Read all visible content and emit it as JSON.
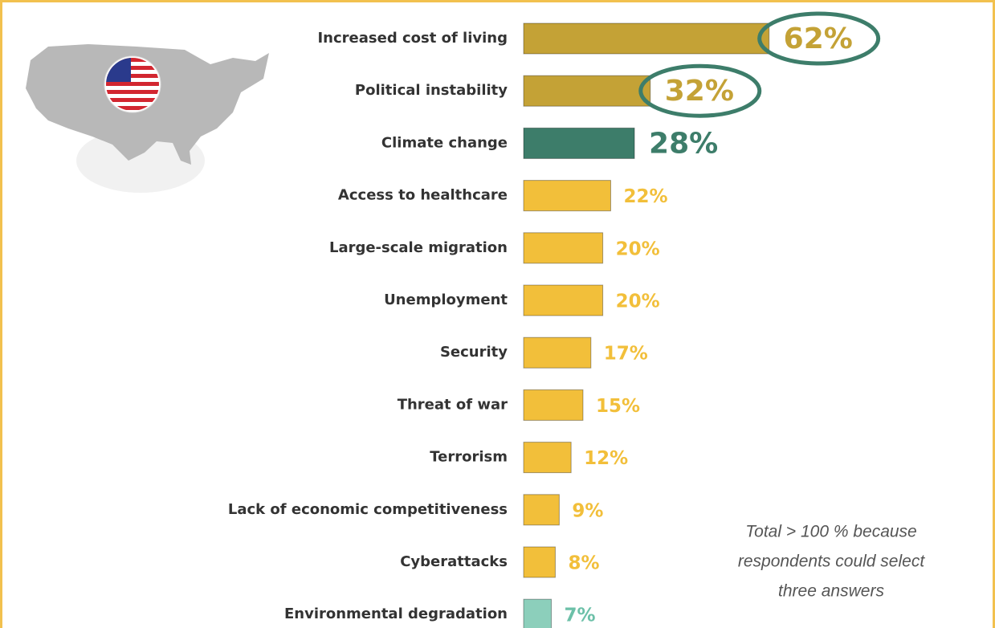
{
  "chart_data": {
    "type": "barh",
    "categories": [
      "Increased cost of living",
      "Political instability",
      "Climate change",
      "Access to healthcare",
      "Large-scale migration",
      "Unemployment",
      "Security",
      "Threat of war",
      "Terrorism",
      "Lack of economic competitiveness",
      "Cyberattacks",
      "Environmental degradation"
    ],
    "values": [
      62,
      32,
      28,
      22,
      20,
      20,
      17,
      15,
      12,
      9,
      8,
      7
    ],
    "value_labels": [
      "62%",
      "32%",
      "28%",
      "22%",
      "20%",
      "20%",
      "17%",
      "15%",
      "12%",
      "9%",
      "8%",
      "7%"
    ],
    "colors": [
      "#c4a236",
      "#c4a236",
      "#3d7d6a",
      "#f2bf3a",
      "#f2bf3a",
      "#f2bf3a",
      "#f2bf3a",
      "#f2bf3a",
      "#f2bf3a",
      "#f2bf3a",
      "#f2bf3a",
      "#8ccfbb"
    ],
    "label_colors": [
      "#c4a236",
      "#c4a236",
      "#3d7d6a",
      "#f2bf3a",
      "#f2bf3a",
      "#f2bf3a",
      "#f2bf3a",
      "#f2bf3a",
      "#f2bf3a",
      "#f2bf3a",
      "#f2bf3a",
      "#6cc0a8"
    ],
    "highlighted": [
      0,
      1,
      2
    ],
    "circled": [
      0,
      1
    ],
    "circle_color": "#3d7d6a",
    "annotation": [
      "Total > 100 % because",
      "respondents could select",
      "three answers"
    ]
  }
}
